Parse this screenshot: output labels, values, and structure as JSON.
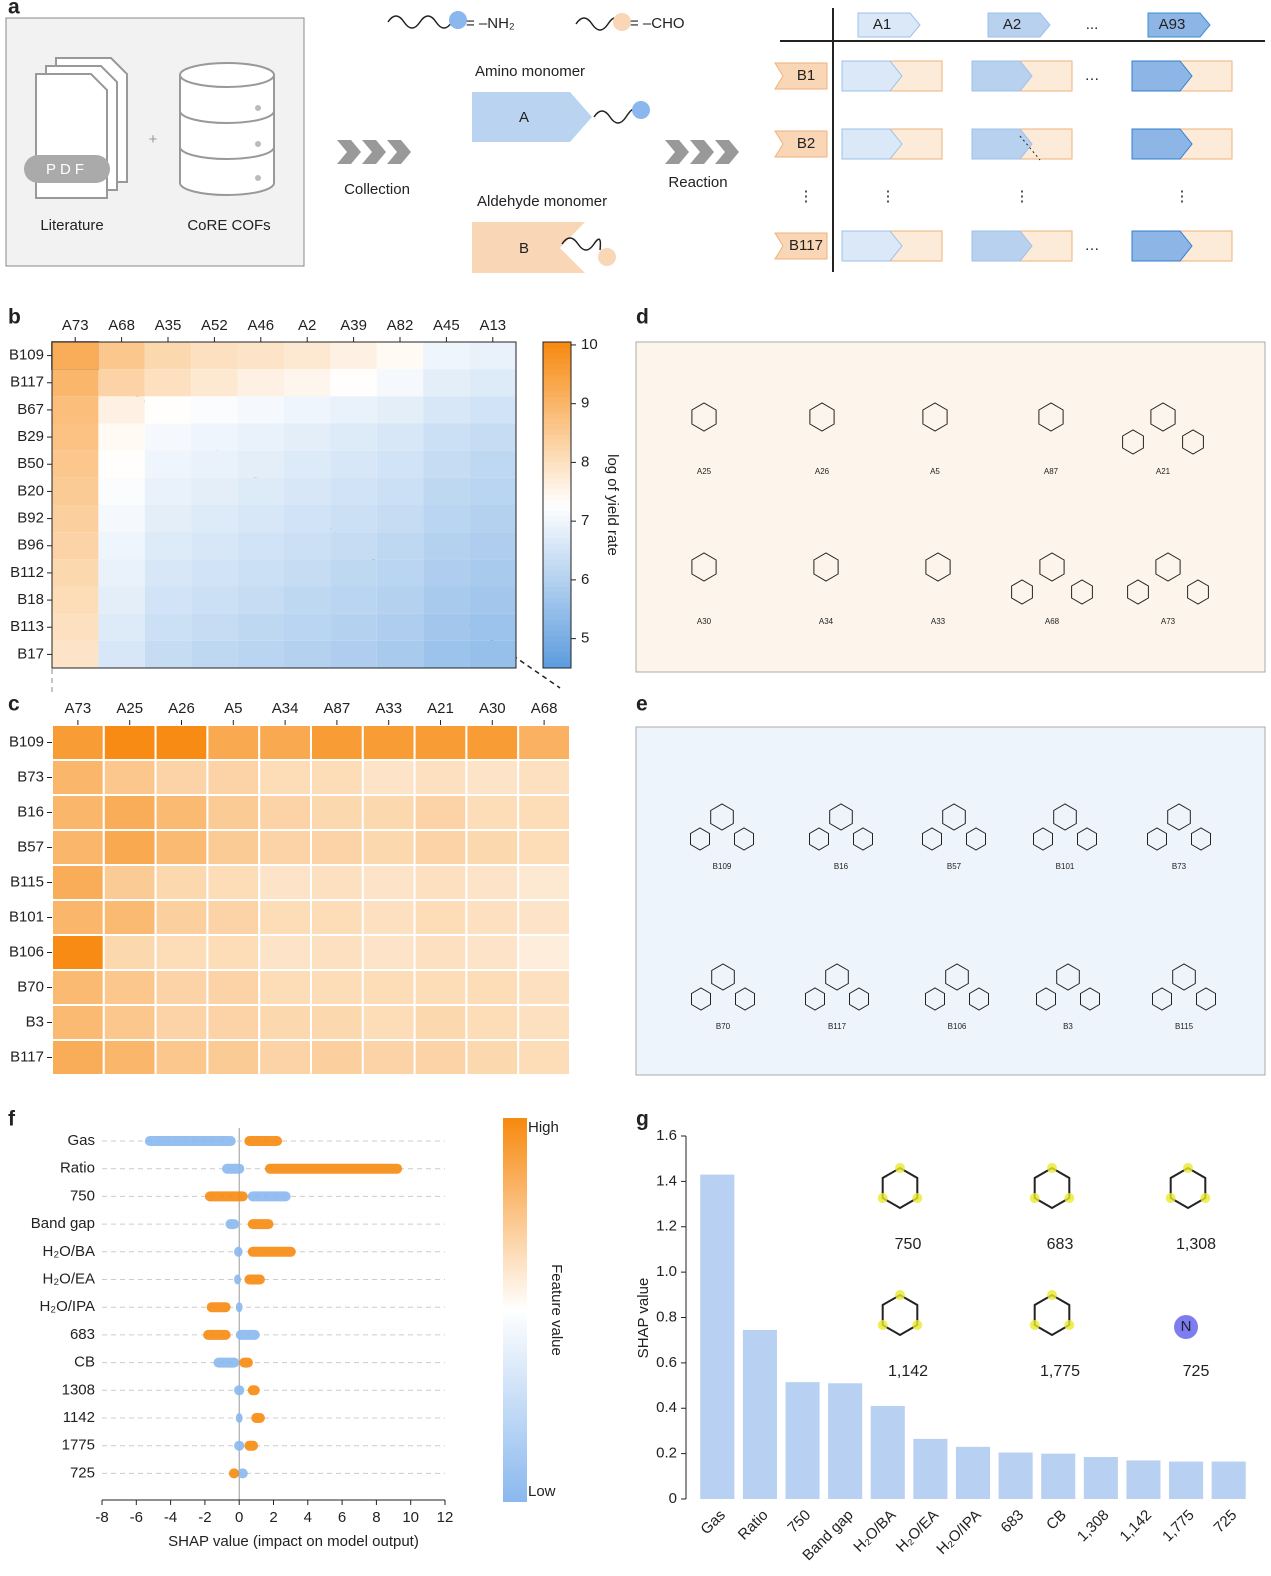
{
  "panel_labels": [
    "a",
    "b",
    "c",
    "d",
    "e",
    "f",
    "g"
  ],
  "panel_a": {
    "legend_amine": "= –NH₂",
    "legend_aldehyde": "= –CHO",
    "pdf": "PDF",
    "plus": "+",
    "literature": "Literature",
    "database": "CoRE COFs",
    "step1": "Collection",
    "amino_monomer": "Amino monomer",
    "amino_letter": "A",
    "aldehyde_monomer": "Aldehyde monomer",
    "aldehyde_letter": "B",
    "step2": "Reaction",
    "columns": [
      "A1",
      "A2",
      "...",
      "A93"
    ],
    "rows": [
      "B1",
      "B2",
      "⋮",
      "B117"
    ]
  },
  "panel_d": {
    "compounds": [
      "A25",
      "A26",
      "A5",
      "A87",
      "A21",
      "A30",
      "A34",
      "A33",
      "A68",
      "A73"
    ]
  },
  "panel_e": {
    "compounds": [
      "B109",
      "B16",
      "B57",
      "B101",
      "B73",
      "B70",
      "B117",
      "B106",
      "B3",
      "B115"
    ]
  },
  "chart_data": [
    {
      "type": "heatmap",
      "x_categories": [
        "A73",
        "A68",
        "A35",
        "A52",
        "A46",
        "A2",
        "A39",
        "A82",
        "A45",
        "A13"
      ],
      "y_categories": [
        "B109",
        "B117",
        "B67",
        "B29",
        "B50",
        "B20",
        "B92",
        "B96",
        "B112",
        "B18",
        "B113",
        "B17"
      ],
      "values": [
        [
          9.2,
          8.6,
          8.2,
          8.0,
          7.9,
          7.8,
          7.6,
          7.4,
          7.0,
          6.9
        ],
        [
          9.0,
          8.3,
          8.0,
          7.8,
          7.6,
          7.5,
          7.3,
          7.1,
          6.8,
          6.7
        ],
        [
          8.8,
          7.6,
          7.3,
          7.2,
          7.1,
          7.0,
          6.9,
          6.8,
          6.6,
          6.5
        ],
        [
          8.7,
          7.4,
          7.1,
          7.0,
          6.9,
          6.8,
          6.7,
          6.6,
          6.4,
          6.3
        ],
        [
          8.6,
          7.3,
          7.0,
          6.9,
          6.8,
          6.7,
          6.6,
          6.5,
          6.3,
          6.2
        ],
        [
          8.5,
          7.2,
          6.9,
          6.8,
          6.7,
          6.6,
          6.5,
          6.4,
          6.2,
          6.1
        ],
        [
          8.4,
          7.1,
          6.8,
          6.7,
          6.6,
          6.5,
          6.4,
          6.3,
          6.1,
          6.0
        ],
        [
          8.3,
          7.0,
          6.7,
          6.6,
          6.5,
          6.4,
          6.3,
          6.2,
          6.0,
          5.9
        ],
        [
          8.2,
          6.9,
          6.6,
          6.5,
          6.4,
          6.3,
          6.2,
          6.1,
          5.9,
          5.8
        ],
        [
          8.1,
          6.8,
          6.5,
          6.4,
          6.3,
          6.2,
          6.1,
          6.0,
          5.8,
          5.7
        ],
        [
          8.0,
          6.7,
          6.4,
          6.3,
          6.2,
          6.1,
          6.0,
          5.9,
          5.7,
          5.6
        ],
        [
          7.9,
          6.6,
          6.3,
          6.2,
          6.1,
          6.0,
          5.9,
          5.8,
          5.6,
          5.5
        ]
      ],
      "zlim": [
        4.5,
        10.05
      ],
      "zticks": [
        5,
        6,
        7,
        8,
        9,
        10
      ],
      "colorbar_label": "log of yield rate"
    },
    {
      "type": "heatmap",
      "x_categories": [
        "A73",
        "A25",
        "A26",
        "A5",
        "A34",
        "A87",
        "A33",
        "A21",
        "A30",
        "A68"
      ],
      "y_categories": [
        "B109",
        "B73",
        "B16",
        "B57",
        "B115",
        "B101",
        "B106",
        "B70",
        "B3",
        "B117"
      ],
      "values": [
        [
          9.6,
          10.0,
          10.0,
          9.3,
          9.3,
          9.6,
          9.6,
          9.6,
          9.6,
          9.1
        ],
        [
          9.0,
          8.6,
          8.3,
          8.3,
          8.1,
          8.1,
          7.9,
          8.0,
          7.9,
          8.0
        ],
        [
          9.0,
          9.2,
          8.9,
          8.5,
          8.3,
          8.2,
          8.2,
          8.3,
          8.1,
          8.1
        ],
        [
          9.0,
          9.3,
          8.9,
          8.5,
          8.3,
          8.3,
          8.2,
          8.3,
          8.2,
          8.1
        ],
        [
          9.2,
          8.5,
          8.2,
          8.1,
          7.9,
          8.0,
          7.9,
          8.0,
          7.9,
          7.8
        ],
        [
          9.0,
          8.9,
          8.4,
          8.3,
          8.1,
          8.1,
          8.0,
          8.1,
          8.0,
          7.9
        ],
        [
          10.0,
          8.2,
          8.1,
          8.1,
          7.9,
          8.0,
          7.9,
          8.0,
          7.9,
          7.7
        ],
        [
          8.9,
          8.6,
          8.3,
          8.3,
          8.1,
          8.1,
          8.1,
          8.1,
          8.1,
          8.0
        ],
        [
          8.9,
          8.6,
          8.3,
          8.3,
          8.2,
          8.2,
          8.1,
          8.2,
          8.1,
          8.0
        ],
        [
          9.2,
          9.0,
          8.6,
          8.5,
          8.3,
          8.4,
          8.3,
          8.3,
          8.2,
          8.1
        ]
      ],
      "zlim": [
        4.5,
        10.05
      ]
    },
    {
      "type": "beeswarm",
      "features": [
        "Gas",
        "Ratio",
        "750",
        "Band gap",
        "H₂O/BA",
        "H₂O/EA",
        "H₂O/IPA",
        "683",
        "CB",
        "1308",
        "1142",
        "1775",
        "725"
      ],
      "low_ranges": [
        [
          -5.5,
          -0.2
        ],
        [
          -1.0,
          0.3
        ],
        [
          0.5,
          3.0
        ],
        [
          -0.8,
          0.0
        ],
        [
          -0.3,
          0.2
        ],
        [
          -0.3,
          0.1
        ],
        [
          -0.2,
          0.2
        ],
        [
          -0.2,
          1.2
        ],
        [
          -1.5,
          0.0
        ],
        [
          -0.3,
          0.3
        ],
        [
          -0.2,
          0.2
        ],
        [
          -0.3,
          0.3
        ],
        [
          -0.1,
          0.5
        ]
      ],
      "high_ranges": [
        [
          0.3,
          2.5
        ],
        [
          1.5,
          9.5
        ],
        [
          -2.0,
          0.5
        ],
        [
          0.5,
          2.0
        ],
        [
          0.5,
          3.3
        ],
        [
          0.3,
          1.5
        ],
        [
          -1.9,
          -0.5
        ],
        [
          -2.1,
          -0.5
        ],
        [
          0.0,
          0.8
        ],
        [
          0.5,
          1.2
        ],
        [
          0.7,
          1.5
        ],
        [
          0.3,
          1.1
        ],
        [
          -0.6,
          0.0
        ]
      ],
      "xlim": [
        -8,
        12
      ],
      "xticks": [
        -8,
        -6,
        -4,
        -2,
        0,
        2,
        4,
        6,
        8,
        10,
        12
      ],
      "xlabel": "SHAP value (impact on model output)",
      "colorbar_high": "High",
      "colorbar_low": "Low",
      "colorbar_label": "Feature value",
      "low_color": "#8ab8ee",
      "high_color": "#f7890f"
    },
    {
      "type": "bar",
      "categories": [
        "Gas",
        "Ratio",
        "750",
        "Band gap",
        "H₂O/BA",
        "H₂O/EA",
        "H₂O/IPA",
        "683",
        "CB",
        "1,308",
        "1,142",
        "1,775",
        "725"
      ],
      "values": [
        1.43,
        0.745,
        0.515,
        0.51,
        0.41,
        0.265,
        0.23,
        0.205,
        0.2,
        0.185,
        0.17,
        0.165,
        0.165
      ],
      "ylim": [
        0,
        1.6
      ],
      "yticks": [
        0,
        0.2,
        0.4,
        0.6,
        0.8,
        {
          "value": 1,
          "label": "1.0"
        },
        1.2,
        1.4,
        1.6
      ],
      "ylabel": "SHAP value",
      "color": "#b8d0f2",
      "annotations": [
        "750",
        "683",
        "1,308",
        "1,142",
        "1,775",
        "725"
      ]
    }
  ]
}
